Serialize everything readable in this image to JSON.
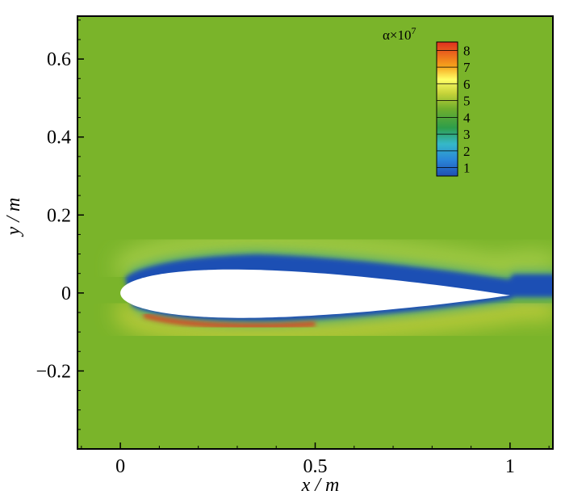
{
  "chart_data": {
    "type": "heatmap",
    "title": "",
    "xlabel": "x / m",
    "ylabel": "y / m",
    "xlim": [
      -0.11,
      1.11
    ],
    "ylim": [
      -0.4,
      0.71
    ],
    "x_ticks": [
      0,
      0.5,
      1
    ],
    "x_tick_labels": [
      "0",
      "0.5",
      "1"
    ],
    "y_ticks": [
      -0.2,
      0,
      0.2,
      0.4,
      0.6
    ],
    "y_tick_labels": [
      "−0.2",
      "0",
      "0.2",
      "0.4",
      "0.6"
    ],
    "grid": false,
    "legend": {
      "title": "α×10",
      "title_exp": "7",
      "placement": "top-right",
      "levels": [
        1,
        2,
        3,
        4,
        5,
        6,
        7,
        8
      ],
      "labels": [
        "1",
        "2",
        "3",
        "4",
        "5",
        "6",
        "7",
        "8"
      ]
    },
    "colors": {
      "background_field": "#7ab42a",
      "low": "#1f4fb4",
      "high": "#e0301e",
      "body": "#ffffff"
    },
    "body": {
      "chord": [
        0,
        1
      ],
      "max_thickness_at_x": 0.3
    }
  }
}
